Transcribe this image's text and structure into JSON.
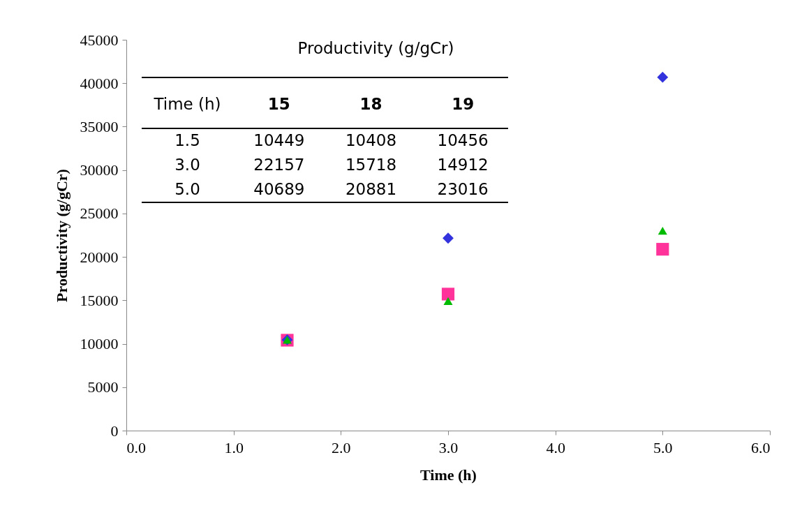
{
  "chart_data": [
    {
      "type": "scatter",
      "xlabel": "Time (h)",
      "ylabel": "Productivity (g/gCr)",
      "x": [
        1.5,
        3.0,
        5.0
      ],
      "series": [
        {
          "color": "#3333dd",
          "marker": "diamond",
          "values": [
            10449,
            22157,
            40689
          ]
        },
        {
          "color": "#ff3399",
          "marker": "square",
          "values": [
            10408,
            15718,
            20881
          ]
        },
        {
          "color": "#00bb00",
          "marker": "triangle",
          "values": [
            10456,
            14912,
            23016
          ]
        }
      ],
      "xlim": [
        0,
        6
      ],
      "xticks": [
        {
          "value": 0,
          "label": "0.0"
        },
        {
          "value": 1,
          "label": "1.0"
        },
        {
          "value": 2,
          "label": "2.0"
        },
        {
          "value": 3,
          "label": "3.0"
        },
        {
          "value": 4,
          "label": "4.0"
        },
        {
          "value": 5,
          "label": "5.0"
        },
        {
          "value": 6,
          "label": "6.0"
        }
      ],
      "ylim": [
        0,
        45000
      ],
      "yticks": [
        0,
        5000,
        10000,
        15000,
        20000,
        25000,
        30000,
        35000,
        40000,
        45000
      ],
      "grid": false
    },
    {
      "type": "heatmap",
      "title": "Productivity (g/gCr)",
      "ylabel": "Time (h)",
      "categories": [
        "15",
        "18",
        "19"
      ],
      "y_categories": [
        "1.5",
        "3.0",
        "5.0"
      ],
      "cells": [
        [
          10449,
          10408,
          10456
        ],
        [
          22157,
          15718,
          14912
        ],
        [
          40689,
          20881,
          23016
        ]
      ],
      "data_labels": true
    }
  ]
}
